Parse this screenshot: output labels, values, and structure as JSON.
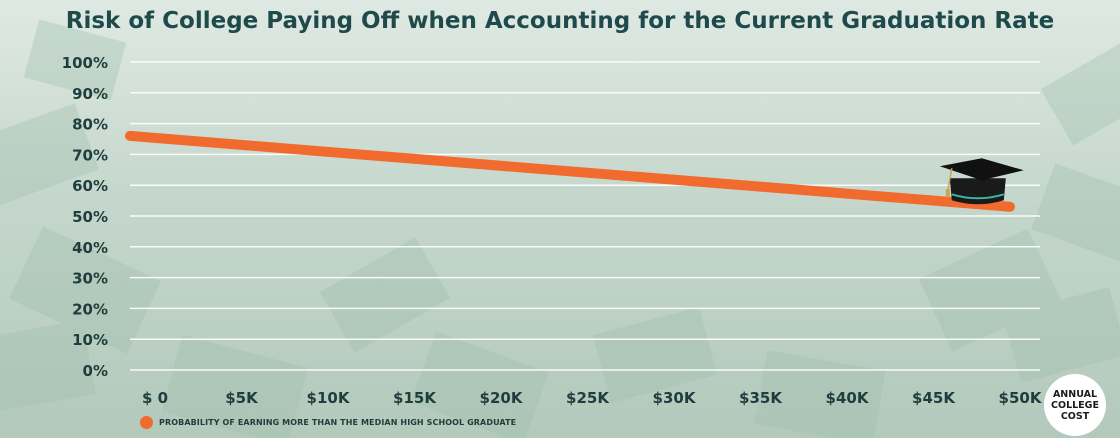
{
  "title": "Risk of College Paying Off when Accounting for the Current Graduation Rate",
  "x_unit_label": "ANNUAL\nCOLLEGE\nCOST",
  "colors": {
    "line": "#f26b2e",
    "text_dark": "#1f3d3e",
    "title": "#1f4a4c",
    "grid": "#ffffff"
  },
  "chart_data": {
    "type": "line",
    "title": "Risk of College Paying Off when Accounting for the Current Graduation Rate",
    "xlabel": "ANNUAL COLLEGE COST",
    "ylabel": "",
    "x": [
      0,
      50000
    ],
    "x_tick_values": [
      0,
      5000,
      10000,
      15000,
      20000,
      25000,
      30000,
      35000,
      40000,
      45000,
      50000
    ],
    "x_tick_labels": [
      "$ 0",
      "$5K",
      "$10K",
      "$15K",
      "$20K",
      "$25K",
      "$30K",
      "$35K",
      "$40K",
      "$45K",
      "$50K"
    ],
    "y_tick_values": [
      0,
      10,
      20,
      30,
      40,
      50,
      60,
      70,
      80,
      90,
      100
    ],
    "y_tick_labels": [
      "0%",
      "10%",
      "20%",
      "30%",
      "40%",
      "50%",
      "60%",
      "70%",
      "80%",
      "90%",
      "100%"
    ],
    "xlim": [
      0,
      50000
    ],
    "ylim": [
      0,
      100
    ],
    "grid": true,
    "legend_placement": "bottom-left",
    "series": [
      {
        "name": "PROBABILITY OF EARNING MORE THAN THE MEDIAN HIGH SCHOOL GRADUATE",
        "x": [
          0,
          50000
        ],
        "values": [
          76,
          53
        ],
        "color": "#f26b2e"
      }
    ],
    "annotations": [
      {
        "type": "icon",
        "name": "graduation-cap-icon",
        "x": 48000,
        "y": 59
      }
    ]
  }
}
